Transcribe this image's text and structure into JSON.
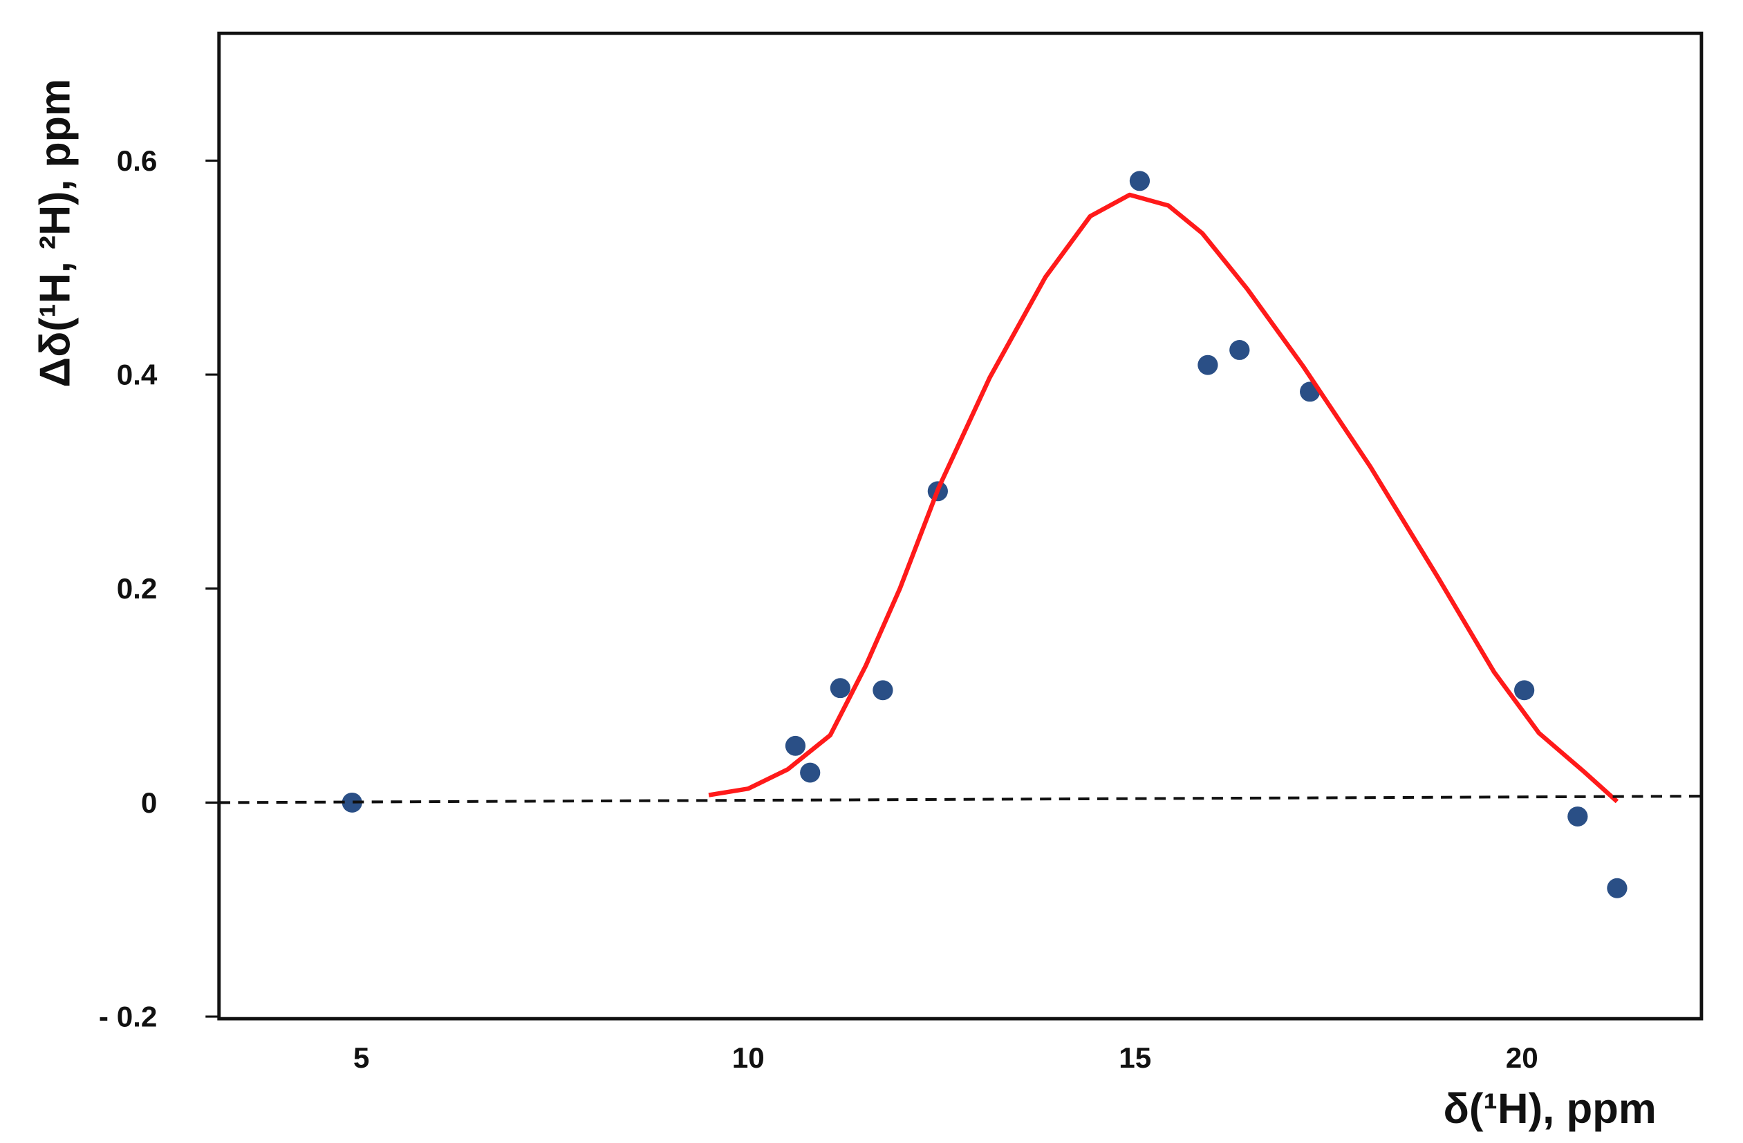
{
  "chart_data": {
    "type": "scatter",
    "x_label": "δ(¹H), ppm",
    "y_label": "Δδ(¹H, ²H), ppm",
    "xlim": [
      3.16,
      22.32
    ],
    "ylim": [
      -0.202,
      0.719
    ],
    "xticks": [
      5,
      10,
      15,
      20
    ],
    "yticks": [
      {
        "value": -0.2,
        "label": "- 0.2"
      },
      0,
      0.2,
      0.4,
      0.6
    ],
    "series": [
      {
        "kind": "points",
        "color": "#2a4f86",
        "x": [
          4.88,
          10.61,
          10.8,
          11.19,
          11.74,
          12.45,
          15.06,
          15.94,
          16.35,
          17.26,
          20.03,
          20.72,
          21.23
        ],
        "values": [
          0,
          0.053,
          0.028,
          0.107,
          0.105,
          0.291,
          0.581,
          0.409,
          0.423,
          0.384,
          0.105,
          -0.013,
          -0.08
        ]
      },
      {
        "kind": "curve",
        "color": "#ff1a1a",
        "x": [
          9.49,
          10,
          10.51,
          11.06,
          11.52,
          11.96,
          12.46,
          13.12,
          13.84,
          14.42,
          14.93,
          15.43,
          15.87,
          16.45,
          17.17,
          18.04,
          18.91,
          19.64,
          20.22,
          20.8,
          21.23
        ],
        "values": [
          0.007,
          0.013,
          0.031,
          0.063,
          0.128,
          0.2,
          0.294,
          0.397,
          0.491,
          0.548,
          0.568,
          0.558,
          0.532,
          0.48,
          0.408,
          0.314,
          0.211,
          0.122,
          0.065,
          0.029,
          0.001
        ]
      },
      {
        "kind": "dashed",
        "color": "#111111",
        "x": [
          3.16,
          22.32
        ],
        "values": [
          0,
          0.006
        ]
      }
    ]
  }
}
